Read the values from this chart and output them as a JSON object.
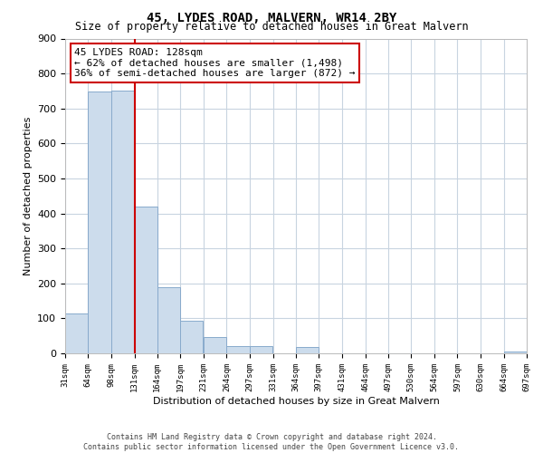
{
  "title": "45, LYDES ROAD, MALVERN, WR14 2BY",
  "subtitle": "Size of property relative to detached houses in Great Malvern",
  "xlabel": "Distribution of detached houses by size in Great Malvern",
  "ylabel": "Number of detached properties",
  "bar_color": "#ccdcec",
  "bar_edge_color": "#88aacc",
  "background_color": "#ffffff",
  "grid_color": "#c8d4e0",
  "annotation_line_color": "#cc0000",
  "annotation_box_edge": "#cc0000",
  "bins": [
    31,
    64,
    98,
    131,
    164,
    197,
    231,
    264,
    297,
    331,
    364,
    397,
    431,
    464,
    497,
    530,
    564,
    597,
    630,
    664,
    697
  ],
  "bin_labels": [
    "31sqm",
    "64sqm",
    "98sqm",
    "131sqm",
    "164sqm",
    "197sqm",
    "231sqm",
    "264sqm",
    "297sqm",
    "331sqm",
    "364sqm",
    "397sqm",
    "431sqm",
    "464sqm",
    "497sqm",
    "530sqm",
    "564sqm",
    "597sqm",
    "630sqm",
    "664sqm",
    "697sqm"
  ],
  "counts": [
    113,
    748,
    750,
    420,
    190,
    93,
    46,
    22,
    20,
    0,
    18,
    0,
    0,
    0,
    0,
    0,
    0,
    0,
    0,
    5
  ],
  "ylim": [
    0,
    900
  ],
  "yticks": [
    0,
    100,
    200,
    300,
    400,
    500,
    600,
    700,
    800,
    900
  ],
  "property_label": "45 LYDES ROAD: 128sqm",
  "pct_smaller": 62,
  "count_smaller": 1498,
  "pct_larger": 36,
  "count_larger": 872,
  "vline_x": 131,
  "footer_line1": "Contains HM Land Registry data © Crown copyright and database right 2024.",
  "footer_line2": "Contains public sector information licensed under the Open Government Licence v3.0."
}
